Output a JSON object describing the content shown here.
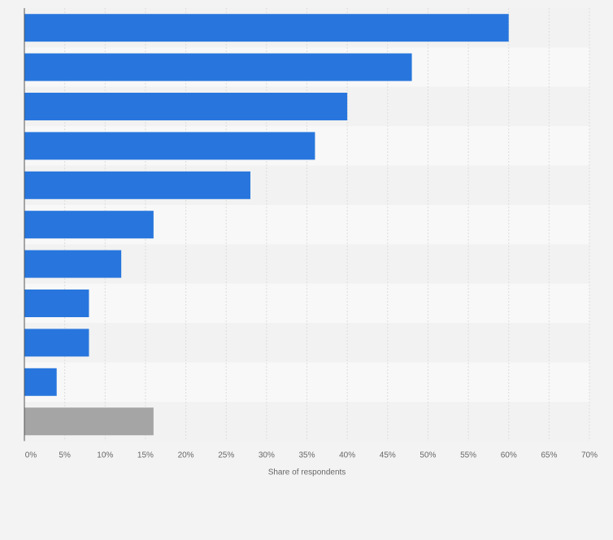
{
  "chart_data": {
    "type": "bar",
    "orientation": "horizontal",
    "title": "",
    "xlabel": "Share of respondents",
    "ylabel": "",
    "xlim": [
      0,
      70
    ],
    "ticks": [
      0,
      5,
      10,
      15,
      20,
      25,
      30,
      35,
      40,
      45,
      50,
      55,
      60,
      65,
      70
    ],
    "tick_labels": [
      "0%",
      "5%",
      "10%",
      "15%",
      "20%",
      "25%",
      "30%",
      "35%",
      "40%",
      "45%",
      "50%",
      "55%",
      "60%",
      "65%",
      "70%"
    ],
    "categories": [
      "",
      "",
      "",
      "",
      "",
      "",
      "",
      "",
      "",
      "",
      ""
    ],
    "values": [
      60,
      48,
      40,
      36,
      28,
      16,
      12,
      8,
      8,
      4,
      16
    ],
    "grid": true,
    "colors": {
      "bar": "#2876dd",
      "last_bar": "#a5a5a5",
      "band_dark": "#f2f2f2",
      "band_light": "#f8f8f8",
      "grid": "#dddddd",
      "axis": "#555555",
      "tick_text": "#666666"
    }
  }
}
